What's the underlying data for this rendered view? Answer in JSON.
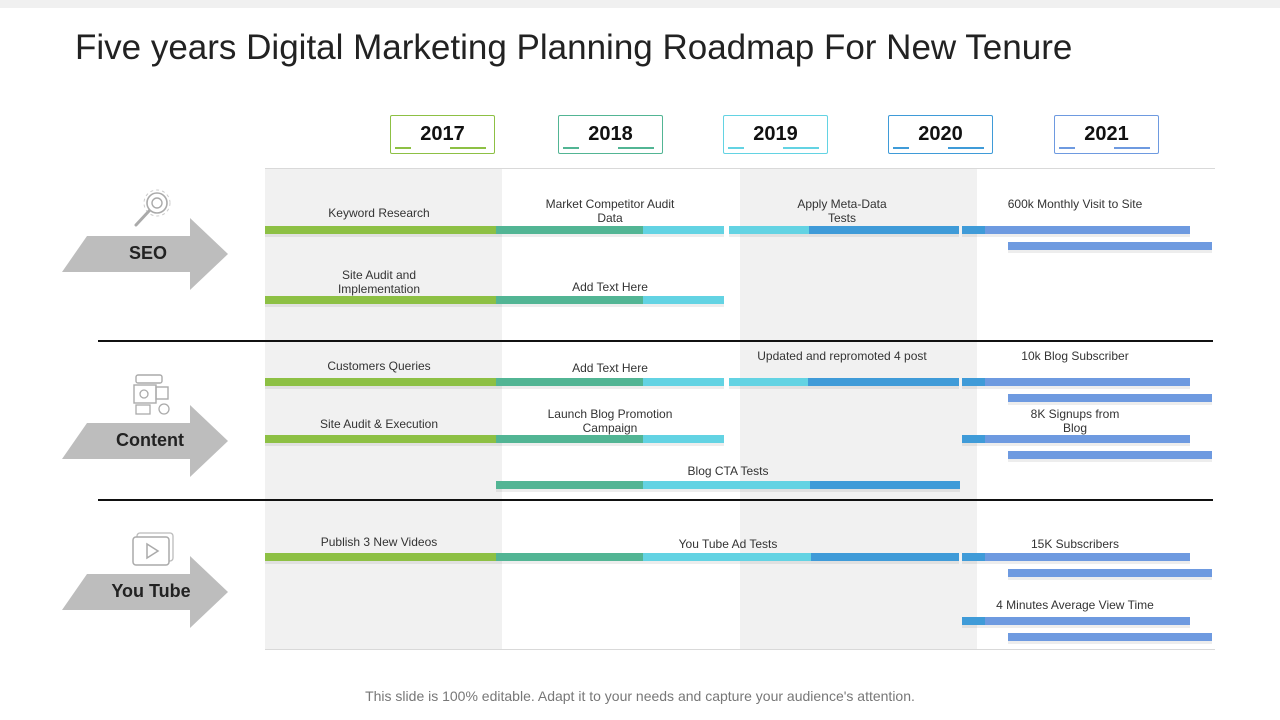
{
  "title": "Five years Digital Marketing Planning Roadmap For New Tenure",
  "years": [
    "2017",
    "2018",
    "2019",
    "2020",
    "2021"
  ],
  "categories": {
    "seo": "SEO",
    "content": "Content",
    "youtube": "You Tube"
  },
  "tasks": {
    "keyword_research": "Keyword Research",
    "market_competitor": "Market Competitor Audit\nData",
    "meta_data": "Apply Meta-Data\nTests",
    "monthly_visit": "600k Monthly  Visit to Site",
    "site_audit_impl": "Site Audit and\nImplementation",
    "add_text_1": "Add Text Here",
    "customers_queries": "Customers Queries",
    "add_text_2": "Add Text Here",
    "updated_post": "Updated and repromoted 4 post",
    "blog_subscriber": "10k Blog Subscriber",
    "site_audit_exec": "Site Audit & Execution",
    "launch_blog": "Launch Blog Promotion\nCampaign",
    "signups_blog": "8K Signups from\nBlog",
    "blog_cta": "Blog CTA Tests",
    "publish_videos": "Publish 3 New Videos",
    "youtube_ad": "You Tube Ad Tests",
    "subscribers": "15K Subscribers",
    "view_time": "4 Minutes Average View Time"
  },
  "footer": "This slide is 100% editable. Adapt it to your needs and capture your audience's attention.",
  "colors": {
    "green": "#8dc044",
    "teal": "#52b594",
    "cyan": "#63d3e3",
    "blue": "#3f9bd8",
    "periwinkle": "#6e9ae0",
    "arrow": "#bdbdbd"
  }
}
